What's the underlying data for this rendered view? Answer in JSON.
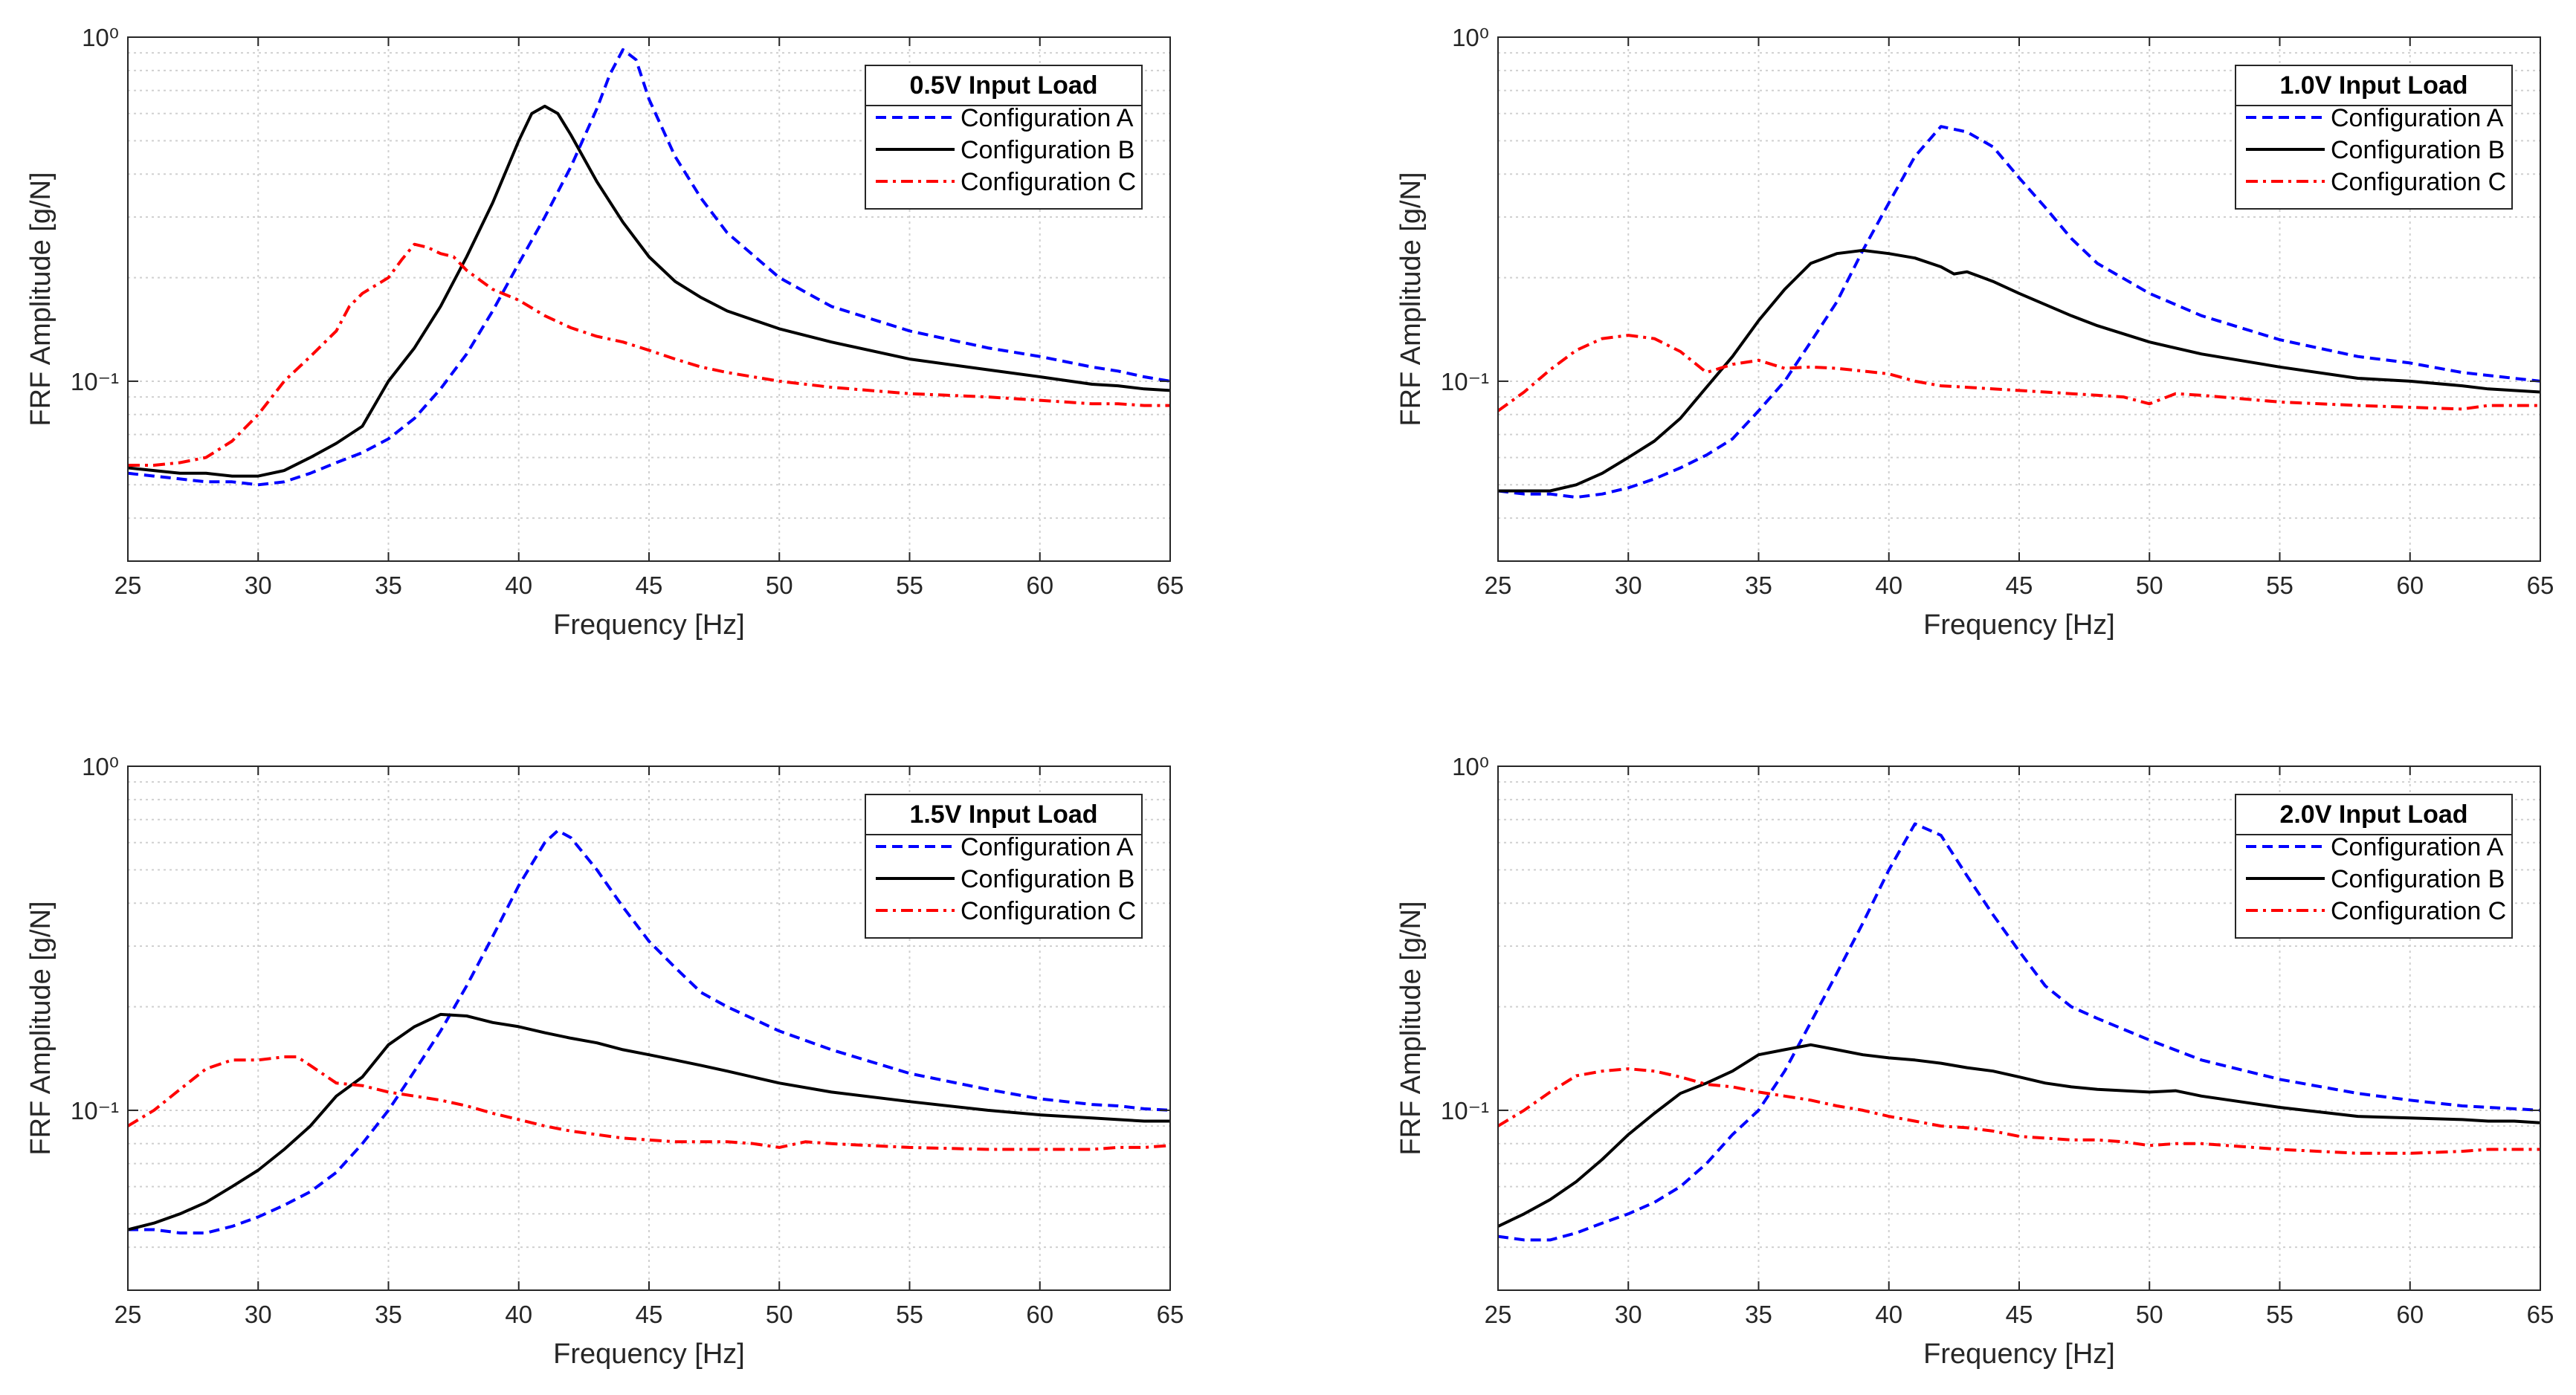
{
  "chart_data": [
    {
      "type": "line",
      "title": "0.5V Input Load",
      "xlabel": "Frequency [Hz]",
      "ylabel": "FRF Amplitude [g/N]",
      "xlim": [
        25,
        65
      ],
      "ylim": [
        0.03,
        1
      ],
      "yscale": "log",
      "grid": true,
      "legend_position": "top-right",
      "x_ticks": [
        25,
        30,
        35,
        40,
        45,
        50,
        55,
        60,
        65
      ],
      "x_tick_labels": [
        "25",
        "30",
        "35",
        "40",
        "45",
        "50",
        "55",
        "60",
        "65"
      ],
      "y_ticks": [
        0.1,
        1
      ],
      "y_tick_labels": [
        "10⁻¹",
        "10⁰"
      ],
      "series": [
        {
          "name": "Configuration A",
          "color": "#0000ff",
          "dash": "dashed",
          "x": [
            25,
            26,
            27,
            28,
            29,
            30,
            31,
            32,
            33,
            34,
            35,
            36,
            37,
            38,
            39,
            40,
            41,
            42,
            43,
            43.5,
            44,
            44.5,
            45,
            46,
            47,
            48,
            50,
            52,
            55,
            58,
            60,
            62,
            63,
            64,
            65
          ],
          "y": [
            0.054,
            0.053,
            0.052,
            0.051,
            0.051,
            0.05,
            0.051,
            0.054,
            0.058,
            0.062,
            0.068,
            0.078,
            0.095,
            0.12,
            0.16,
            0.22,
            0.3,
            0.42,
            0.62,
            0.78,
            0.92,
            0.86,
            0.66,
            0.45,
            0.34,
            0.27,
            0.2,
            0.165,
            0.14,
            0.125,
            0.118,
            0.11,
            0.107,
            0.103,
            0.1
          ]
        },
        {
          "name": "Configuration B",
          "color": "#000000",
          "dash": "solid",
          "x": [
            25,
            26,
            27,
            28,
            29,
            30,
            31,
            32,
            33,
            34,
            35,
            36,
            37,
            38,
            39,
            40,
            40.5,
            41,
            41.5,
            42,
            43,
            44,
            45,
            46,
            47,
            48,
            50,
            52,
            55,
            58,
            60,
            62,
            63,
            64,
            65
          ],
          "y": [
            0.056,
            0.055,
            0.054,
            0.054,
            0.053,
            0.053,
            0.055,
            0.06,
            0.066,
            0.074,
            0.1,
            0.125,
            0.165,
            0.23,
            0.33,
            0.5,
            0.6,
            0.63,
            0.6,
            0.52,
            0.38,
            0.29,
            0.23,
            0.195,
            0.175,
            0.16,
            0.142,
            0.13,
            0.116,
            0.108,
            0.103,
            0.098,
            0.097,
            0.095,
            0.094
          ]
        },
        {
          "name": "Configuration C",
          "color": "#ff0000",
          "dash": "dashdot",
          "x": [
            25,
            26,
            27,
            28,
            29,
            30,
            31,
            32,
            33,
            33.5,
            34,
            35,
            35.5,
            36,
            36.5,
            37,
            37.5,
            38,
            39,
            40,
            41,
            42,
            43,
            44,
            45,
            46,
            47,
            48,
            50,
            52,
            55,
            58,
            60,
            62,
            63,
            64,
            65
          ],
          "y": [
            0.057,
            0.057,
            0.058,
            0.06,
            0.067,
            0.08,
            0.1,
            0.118,
            0.14,
            0.165,
            0.18,
            0.2,
            0.225,
            0.25,
            0.245,
            0.235,
            0.23,
            0.21,
            0.185,
            0.172,
            0.155,
            0.143,
            0.135,
            0.13,
            0.123,
            0.116,
            0.11,
            0.106,
            0.1,
            0.096,
            0.092,
            0.09,
            0.088,
            0.086,
            0.086,
            0.085,
            0.085
          ]
        }
      ]
    },
    {
      "type": "line",
      "title": "1.0V Input Load",
      "xlabel": "Frequency [Hz]",
      "ylabel": "FRF Amplitude [g/N]",
      "xlim": [
        25,
        65
      ],
      "ylim": [
        0.03,
        1
      ],
      "yscale": "log",
      "grid": true,
      "legend_position": "top-right",
      "x_ticks": [
        25,
        30,
        35,
        40,
        45,
        50,
        55,
        60,
        65
      ],
      "x_tick_labels": [
        "25",
        "30",
        "35",
        "40",
        "45",
        "50",
        "55",
        "60",
        "65"
      ],
      "y_ticks": [
        0.1,
        1
      ],
      "y_tick_labels": [
        "10⁻¹",
        "10⁰"
      ],
      "series": [
        {
          "name": "Configuration A",
          "color": "#0000ff",
          "dash": "dashed",
          "x": [
            25,
            26,
            27,
            28,
            29,
            30,
            31,
            32,
            33,
            34,
            35,
            36,
            37,
            38,
            39,
            40,
            41,
            42,
            43,
            44,
            45,
            46,
            47,
            48,
            50,
            52,
            55,
            58,
            60,
            62,
            63,
            64,
            65
          ],
          "y": [
            0.048,
            0.047,
            0.047,
            0.046,
            0.047,
            0.049,
            0.052,
            0.056,
            0.061,
            0.068,
            0.082,
            0.1,
            0.13,
            0.17,
            0.24,
            0.33,
            0.45,
            0.55,
            0.53,
            0.48,
            0.39,
            0.32,
            0.26,
            0.22,
            0.18,
            0.155,
            0.132,
            0.118,
            0.113,
            0.106,
            0.104,
            0.102,
            0.1
          ]
        },
        {
          "name": "Configuration B",
          "color": "#000000",
          "dash": "solid",
          "x": [
            25,
            26,
            27,
            28,
            29,
            30,
            31,
            32,
            33,
            34,
            35,
            36,
            37,
            38,
            39,
            40,
            41,
            42,
            42.5,
            43,
            44,
            45,
            46,
            47,
            48,
            50,
            52,
            55,
            58,
            60,
            62,
            63,
            64,
            65
          ],
          "y": [
            0.048,
            0.048,
            0.048,
            0.05,
            0.054,
            0.06,
            0.067,
            0.078,
            0.096,
            0.118,
            0.15,
            0.185,
            0.22,
            0.235,
            0.24,
            0.235,
            0.228,
            0.215,
            0.205,
            0.208,
            0.195,
            0.18,
            0.167,
            0.155,
            0.145,
            0.13,
            0.12,
            0.11,
            0.102,
            0.1,
            0.097,
            0.095,
            0.094,
            0.093
          ]
        },
        {
          "name": "Configuration C",
          "color": "#ff0000",
          "dash": "dashdot",
          "x": [
            25,
            26,
            27,
            28,
            29,
            30,
            31,
            32,
            33,
            34,
            35,
            36,
            37,
            38,
            39,
            40,
            41,
            42,
            43,
            44,
            45,
            46,
            47,
            48,
            49,
            50,
            51,
            52,
            55,
            58,
            60,
            62,
            63,
            64,
            65
          ],
          "y": [
            0.082,
            0.093,
            0.108,
            0.123,
            0.133,
            0.136,
            0.133,
            0.122,
            0.106,
            0.112,
            0.115,
            0.109,
            0.11,
            0.109,
            0.107,
            0.105,
            0.1,
            0.097,
            0.096,
            0.095,
            0.094,
            0.093,
            0.092,
            0.091,
            0.09,
            0.086,
            0.092,
            0.091,
            0.087,
            0.085,
            0.084,
            0.083,
            0.085,
            0.085,
            0.085
          ]
        }
      ]
    },
    {
      "type": "line",
      "title": "1.5V Input Load",
      "xlabel": "Frequency [Hz]",
      "ylabel": "FRF Amplitude [g/N]",
      "xlim": [
        25,
        65
      ],
      "ylim": [
        0.03,
        1
      ],
      "yscale": "log",
      "grid": true,
      "legend_position": "top-right",
      "x_ticks": [
        25,
        30,
        35,
        40,
        45,
        50,
        55,
        60,
        65
      ],
      "x_tick_labels": [
        "25",
        "30",
        "35",
        "40",
        "45",
        "50",
        "55",
        "60",
        "65"
      ],
      "y_ticks": [
        0.1,
        1
      ],
      "y_tick_labels": [
        "10⁻¹",
        "10⁰"
      ],
      "series": [
        {
          "name": "Configuration A",
          "color": "#0000ff",
          "dash": "dashed",
          "x": [
            25,
            26,
            27,
            28,
            29,
            30,
            31,
            32,
            33,
            34,
            35,
            36,
            37,
            38,
            39,
            40,
            41,
            41.5,
            42,
            43,
            44,
            45,
            46,
            47,
            48,
            50,
            52,
            55,
            58,
            60,
            62,
            63,
            64,
            65
          ],
          "y": [
            0.045,
            0.045,
            0.044,
            0.044,
            0.046,
            0.049,
            0.053,
            0.058,
            0.066,
            0.08,
            0.1,
            0.13,
            0.17,
            0.23,
            0.32,
            0.45,
            0.6,
            0.65,
            0.62,
            0.5,
            0.39,
            0.31,
            0.26,
            0.22,
            0.2,
            0.17,
            0.15,
            0.128,
            0.115,
            0.108,
            0.104,
            0.103,
            0.101,
            0.1
          ]
        },
        {
          "name": "Configuration B",
          "color": "#000000",
          "dash": "solid",
          "x": [
            25,
            26,
            27,
            28,
            29,
            30,
            31,
            32,
            33,
            34,
            35,
            36,
            37,
            38,
            39,
            40,
            41,
            42,
            43,
            44,
            45,
            46,
            47,
            48,
            50,
            52,
            55,
            58,
            60,
            62,
            63,
            64,
            65
          ],
          "y": [
            0.045,
            0.047,
            0.05,
            0.054,
            0.06,
            0.067,
            0.077,
            0.09,
            0.11,
            0.125,
            0.155,
            0.175,
            0.19,
            0.188,
            0.18,
            0.175,
            0.168,
            0.162,
            0.157,
            0.15,
            0.145,
            0.14,
            0.135,
            0.13,
            0.12,
            0.113,
            0.106,
            0.1,
            0.097,
            0.095,
            0.094,
            0.093,
            0.093
          ]
        },
        {
          "name": "Configuration C",
          "color": "#ff0000",
          "dash": "dashdot",
          "x": [
            25,
            26,
            27,
            28,
            29,
            30,
            31,
            31.5,
            32,
            33,
            34,
            35,
            36,
            37,
            38,
            39,
            40,
            41,
            42,
            43,
            44,
            45,
            46,
            47,
            48,
            49,
            50,
            51,
            52,
            55,
            58,
            60,
            62,
            63,
            64,
            65
          ],
          "y": [
            0.09,
            0.1,
            0.115,
            0.132,
            0.14,
            0.14,
            0.143,
            0.143,
            0.135,
            0.12,
            0.118,
            0.113,
            0.11,
            0.107,
            0.103,
            0.098,
            0.094,
            0.09,
            0.087,
            0.085,
            0.083,
            0.082,
            0.081,
            0.081,
            0.081,
            0.08,
            0.078,
            0.081,
            0.08,
            0.078,
            0.077,
            0.077,
            0.077,
            0.078,
            0.078,
            0.079
          ]
        }
      ]
    },
    {
      "type": "line",
      "title": "2.0V Input Load",
      "xlabel": "Frequency [Hz]",
      "ylabel": "FRF Amplitude [g/N]",
      "xlim": [
        25,
        65
      ],
      "ylim": [
        0.03,
        1
      ],
      "yscale": "log",
      "grid": true,
      "legend_position": "top-right",
      "x_ticks": [
        25,
        30,
        35,
        40,
        45,
        50,
        55,
        60,
        65
      ],
      "x_tick_labels": [
        "25",
        "30",
        "35",
        "40",
        "45",
        "50",
        "55",
        "60",
        "65"
      ],
      "y_ticks": [
        0.1,
        1
      ],
      "y_tick_labels": [
        "10⁻¹",
        "10⁰"
      ],
      "series": [
        {
          "name": "Configuration A",
          "color": "#0000ff",
          "dash": "dashed",
          "x": [
            25,
            26,
            27,
            28,
            29,
            30,
            31,
            32,
            33,
            34,
            35,
            36,
            37,
            38,
            39,
            40,
            41,
            42,
            43,
            44,
            45,
            46,
            47,
            48,
            50,
            52,
            55,
            58,
            60,
            62,
            63,
            64,
            65
          ],
          "y": [
            0.043,
            0.042,
            0.042,
            0.044,
            0.047,
            0.05,
            0.054,
            0.06,
            0.07,
            0.085,
            0.1,
            0.13,
            0.18,
            0.25,
            0.35,
            0.5,
            0.68,
            0.63,
            0.48,
            0.37,
            0.29,
            0.23,
            0.2,
            0.185,
            0.16,
            0.14,
            0.123,
            0.112,
            0.107,
            0.103,
            0.102,
            0.101,
            0.1
          ]
        },
        {
          "name": "Configuration B",
          "color": "#000000",
          "dash": "solid",
          "x": [
            25,
            26,
            27,
            28,
            29,
            30,
            31,
            32,
            33,
            34,
            35,
            36,
            37,
            38,
            39,
            40,
            41,
            42,
            43,
            44,
            45,
            46,
            47,
            48,
            50,
            51,
            52,
            55,
            58,
            60,
            62,
            63,
            64,
            65
          ],
          "y": [
            0.046,
            0.05,
            0.055,
            0.062,
            0.072,
            0.085,
            0.098,
            0.112,
            0.12,
            0.13,
            0.145,
            0.15,
            0.155,
            0.15,
            0.145,
            0.142,
            0.14,
            0.137,
            0.133,
            0.13,
            0.125,
            0.12,
            0.117,
            0.115,
            0.113,
            0.114,
            0.11,
            0.102,
            0.096,
            0.095,
            0.094,
            0.093,
            0.093,
            0.092
          ]
        },
        {
          "name": "Configuration C",
          "color": "#ff0000",
          "dash": "dashdot",
          "x": [
            25,
            26,
            27,
            28,
            29,
            30,
            31,
            32,
            33,
            34,
            35,
            36,
            37,
            38,
            39,
            40,
            41,
            42,
            43,
            44,
            45,
            46,
            47,
            48,
            49,
            50,
            51,
            52,
            55,
            58,
            60,
            62,
            63,
            64,
            65
          ],
          "y": [
            0.09,
            0.1,
            0.113,
            0.126,
            0.13,
            0.132,
            0.13,
            0.125,
            0.119,
            0.117,
            0.113,
            0.11,
            0.107,
            0.103,
            0.1,
            0.096,
            0.093,
            0.09,
            0.089,
            0.087,
            0.084,
            0.083,
            0.082,
            0.082,
            0.081,
            0.079,
            0.08,
            0.08,
            0.077,
            0.075,
            0.075,
            0.076,
            0.077,
            0.077,
            0.077
          ]
        }
      ]
    }
  ]
}
